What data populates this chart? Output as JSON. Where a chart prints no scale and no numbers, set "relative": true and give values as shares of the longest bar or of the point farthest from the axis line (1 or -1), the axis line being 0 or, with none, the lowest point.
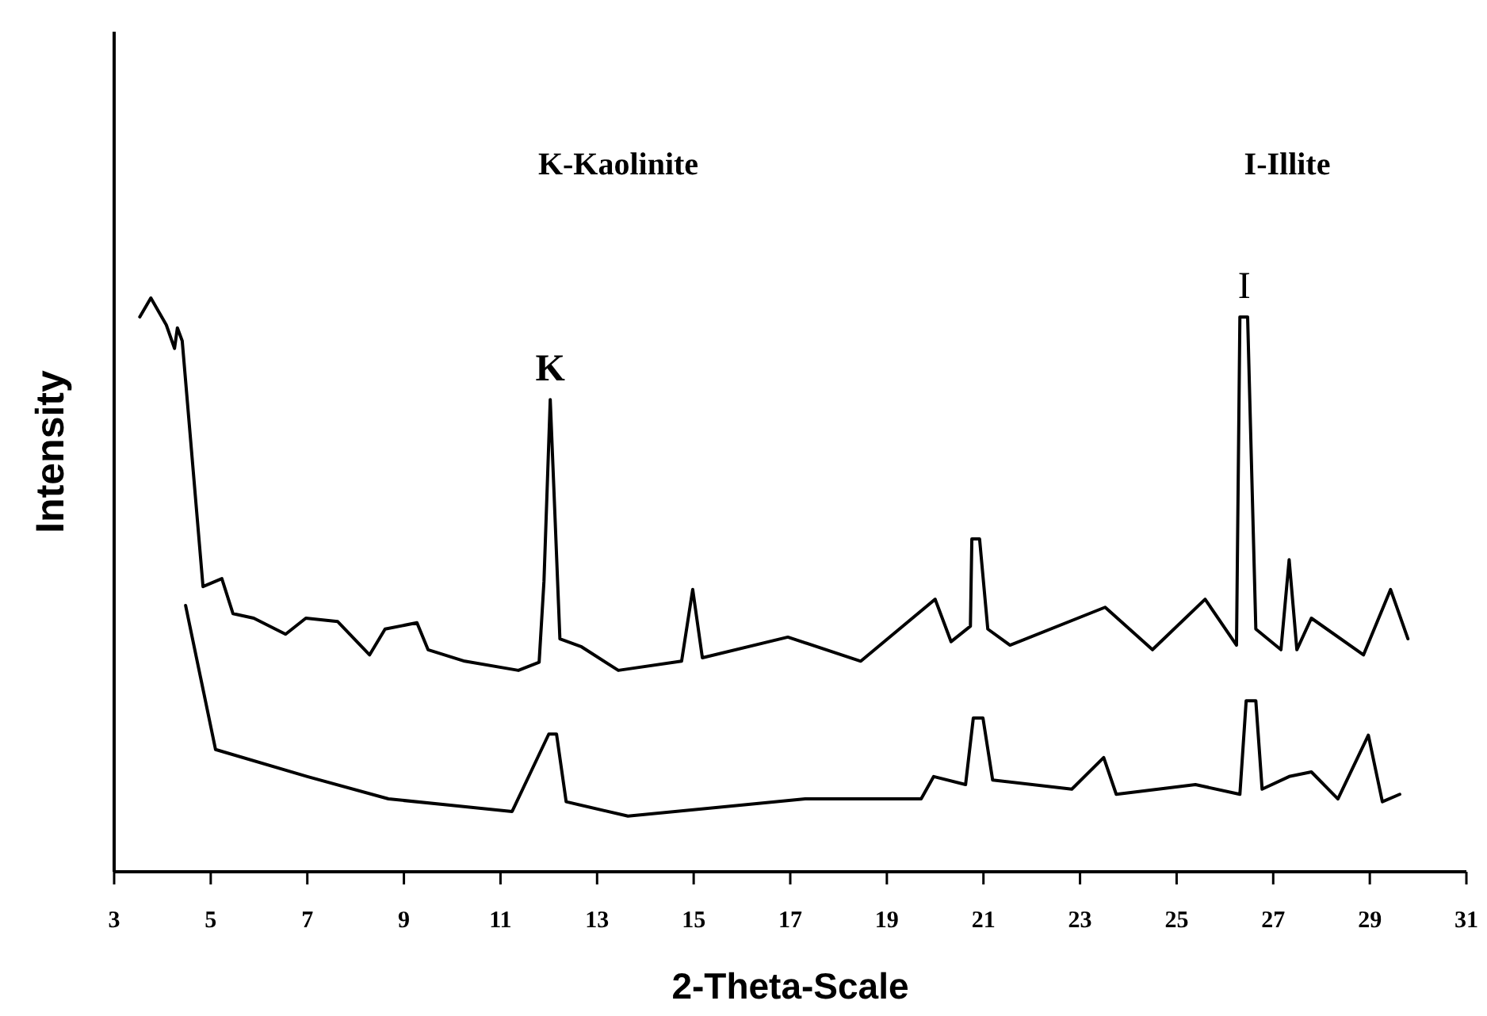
{
  "chart_data": {
    "type": "line",
    "relative": true,
    "xlabel": "2-Theta-Scale",
    "ylabel": "Intensity",
    "xlim": [
      3,
      31
    ],
    "xticks": [
      3,
      5,
      7,
      9,
      11,
      13,
      15,
      17,
      19,
      21,
      23,
      25,
      27,
      29,
      31
    ],
    "line_style": "solid",
    "grid": false,
    "annotations": [
      "K-Kaolinite",
      "I-Illite",
      {
        "text": "K",
        "x": 12.03,
        "y": 0.823
      },
      {
        "text": "I",
        "x": 26.4,
        "y": 0.967
      }
    ],
    "series": [
      {
        "color": "#000000",
        "x": [
          3.53,
          3.76,
          4.08,
          4.25,
          4.31,
          4.41,
          4.84,
          5.23,
          5.46,
          5.89,
          6.55,
          6.97,
          7.63,
          8.29,
          8.61,
          9.27,
          9.5,
          10.26,
          11.37,
          11.8,
          11.9,
          12.03,
          12.13,
          12.23,
          12.68,
          13.44,
          14.75,
          14.98,
          15.18,
          16.95,
          18.46,
          20.0,
          20.33,
          20.73,
          20.76,
          20.92,
          21.09,
          21.55,
          23.52,
          24.5,
          25.59,
          26.24,
          26.31,
          26.47,
          26.64,
          27.16,
          27.33,
          27.49,
          27.79,
          28.87,
          29.43,
          29.79
        ],
        "values": [
          0.967,
          1,
          0.953,
          0.912,
          0.948,
          0.925,
          0.497,
          0.511,
          0.45,
          0.442,
          0.414,
          0.442,
          0.436,
          0.378,
          0.423,
          0.434,
          0.387,
          0.367,
          0.351,
          0.365,
          0.506,
          0.823,
          0.616,
          0.406,
          0.392,
          0.351,
          0.367,
          0.492,
          0.373,
          0.409,
          0.367,
          0.475,
          0.401,
          0.428,
          0.58,
          0.58,
          0.423,
          0.395,
          0.461,
          0.387,
          0.475,
          0.395,
          0.967,
          0.967,
          0.423,
          0.387,
          0.544,
          0.387,
          0.442,
          0.378,
          0.492,
          0.406
        ]
      },
      {
        "color": "#000000",
        "x": [
          4.48,
          5.1,
          7.0,
          8.68,
          11.24,
          12.0,
          12.16,
          12.36,
          13.64,
          17.31,
          19.71,
          19.97,
          20.63,
          20.79,
          20.99,
          21.19,
          22.83,
          23.49,
          23.75,
          25.39,
          26.31,
          26.44,
          26.64,
          26.77,
          27.33,
          27.79,
          28.34,
          28.97,
          29.26,
          29.62
        ],
        "values": [
          0.464,
          0.213,
          0.166,
          0.127,
          0.105,
          0.24,
          0.24,
          0.122,
          0.097,
          0.127,
          0.127,
          0.166,
          0.152,
          0.268,
          0.268,
          0.16,
          0.144,
          0.199,
          0.135,
          0.152,
          0.135,
          0.298,
          0.298,
          0.144,
          0.166,
          0.174,
          0.127,
          0.238,
          0.122,
          0.135
        ]
      }
    ]
  }
}
